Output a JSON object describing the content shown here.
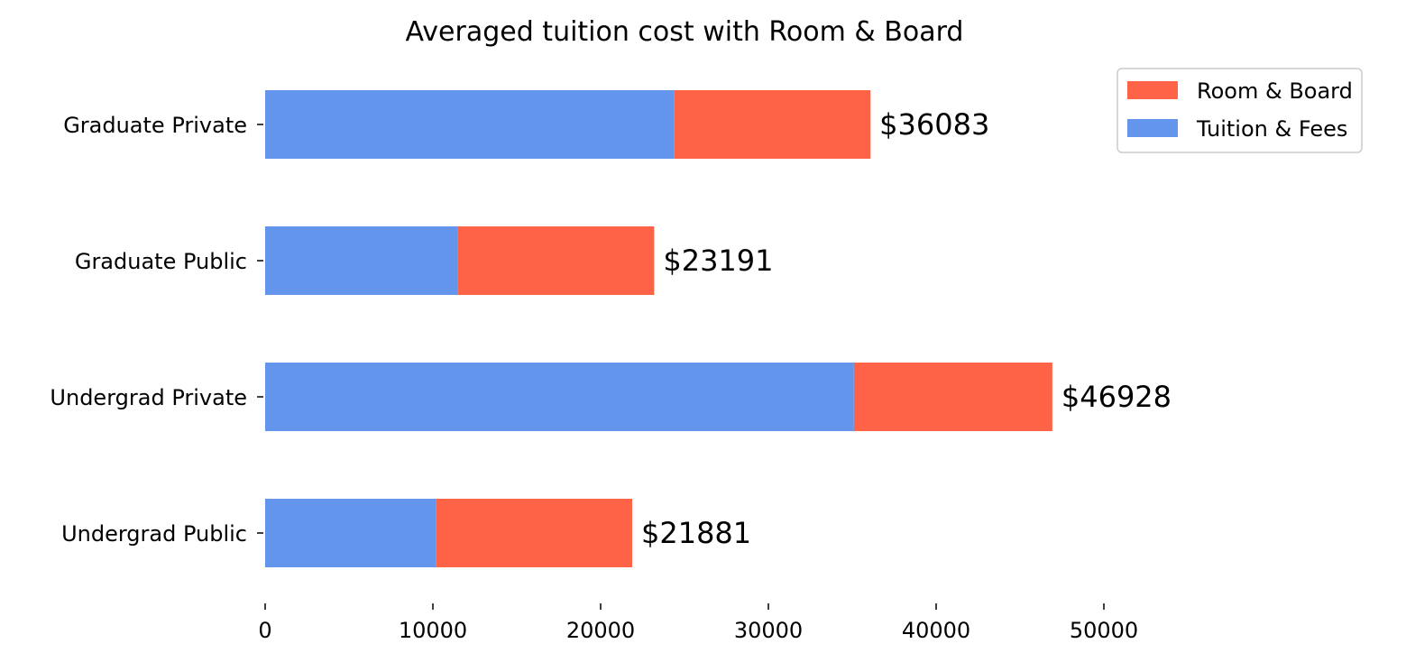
{
  "chart_data": {
    "type": "bar",
    "orientation": "horizontal",
    "stacked": true,
    "title": "Averaged tuition cost with Room & Board",
    "xlabel": "",
    "ylabel": "",
    "categories": [
      "Graduate Private",
      "Graduate Public",
      "Undergrad Private",
      "Undergrad Public"
    ],
    "series": [
      {
        "name": "Tuition & Fees",
        "color": "#6495ED",
        "values": [
          24400,
          11500,
          35100,
          10200
        ]
      },
      {
        "name": "Room & Board",
        "color": "#FF6347",
        "values": [
          11683,
          11691,
          11828,
          11681
        ]
      }
    ],
    "totals": [
      36083,
      23191,
      46928,
      21881
    ],
    "total_labels": [
      "$36083",
      "$23191",
      "$46928",
      "$21881"
    ],
    "xlim": [
      0,
      50000
    ],
    "xticks": [
      0,
      10000,
      20000,
      30000,
      40000,
      50000
    ],
    "xtick_labels": [
      "0",
      "10000",
      "20000",
      "30000",
      "40000",
      "50000"
    ],
    "legend": {
      "placement": "top-right",
      "order": [
        "Room & Board",
        "Tuition & Fees"
      ]
    },
    "grid": false
  }
}
